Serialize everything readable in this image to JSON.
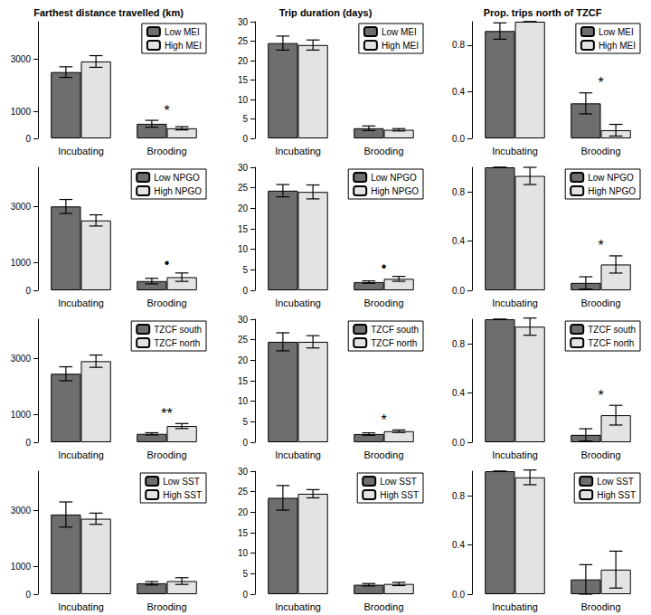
{
  "chart_data": [
    {
      "type": "bar",
      "title": "Farthest distance travelled (km)",
      "categories": [
        "Incubating",
        "Brooding"
      ],
      "series": [
        {
          "name": "Low MEI",
          "color": "#6e6e6e",
          "values": [
            2500,
            550
          ],
          "errors": [
            200,
            130
          ]
        },
        {
          "name": "High MEI",
          "color": "#e3e3e3",
          "values": [
            2900,
            380
          ],
          "errors": [
            220,
            60
          ]
        }
      ],
      "ylim": [
        0,
        4400
      ],
      "yticks": [
        0,
        1000,
        3000
      ],
      "legend": "top right",
      "annotations": [
        {
          "category": "Brooding",
          "text": "*"
        }
      ]
    },
    {
      "type": "bar",
      "title": "Trip duration (days)",
      "categories": [
        "Incubating",
        "Brooding"
      ],
      "series": [
        {
          "name": "Low MEI",
          "color": "#6e6e6e",
          "values": [
            24.5,
            2.6
          ],
          "errors": [
            1.8,
            0.6
          ]
        },
        {
          "name": "High MEI",
          "color": "#e3e3e3",
          "values": [
            24,
            2.2
          ],
          "errors": [
            1.3,
            0.3
          ]
        }
      ],
      "ylim": [
        0,
        30
      ],
      "yticks": [
        0,
        5,
        10,
        15,
        20,
        25,
        30
      ],
      "legend": "top right"
    },
    {
      "type": "bar",
      "title": "Prop. trips north of TZCF",
      "categories": [
        "Incubating",
        "Brooding"
      ],
      "series": [
        {
          "name": "Low MEI",
          "color": "#6e6e6e",
          "values": [
            0.92,
            0.3
          ],
          "errors": [
            0.07,
            0.09
          ]
        },
        {
          "name": "High MEI",
          "color": "#e3e3e3",
          "values": [
            1.0,
            0.07
          ],
          "errors": [
            0,
            0.05
          ]
        }
      ],
      "ylim": [
        0,
        1.0
      ],
      "yticks": [
        {
          "value": 0,
          "label": "0.0"
        },
        {
          "value": 0.4,
          "label": "0.4"
        },
        {
          "value": 0.8,
          "label": "0.8"
        }
      ],
      "legend": "top right",
      "annotations": [
        {
          "category": "Brooding",
          "text": "*"
        }
      ]
    },
    {
      "type": "bar",
      "categories": [
        "Incubating",
        "Brooding"
      ],
      "series": [
        {
          "name": "Low NPGO",
          "color": "#6e6e6e",
          "values": [
            3000,
            330
          ],
          "errors": [
            250,
            100
          ]
        },
        {
          "name": "High NPGO",
          "color": "#e3e3e3",
          "values": [
            2500,
            470
          ],
          "errors": [
            200,
            150
          ]
        }
      ],
      "ylim": [
        0,
        4400
      ],
      "yticks": [
        0,
        1000,
        3000
      ],
      "legend": "top right",
      "annotations": [
        {
          "category": "Brooding",
          "text": "•"
        }
      ]
    },
    {
      "type": "bar",
      "categories": [
        "Incubating",
        "Brooding"
      ],
      "series": [
        {
          "name": "Low NPGO",
          "color": "#6e6e6e",
          "values": [
            24.3,
            2.0
          ],
          "errors": [
            1.5,
            0.3
          ]
        },
        {
          "name": "High NPGO",
          "color": "#e3e3e3",
          "values": [
            24,
            2.8
          ],
          "errors": [
            1.7,
            0.6
          ]
        }
      ],
      "ylim": [
        0,
        30
      ],
      "yticks": [
        0,
        5,
        10,
        15,
        20,
        25,
        30
      ],
      "legend": "top right",
      "annotations": [
        {
          "category": "Brooding",
          "text": "•"
        }
      ]
    },
    {
      "type": "bar",
      "categories": [
        "Incubating",
        "Brooding"
      ],
      "series": [
        {
          "name": "Low NPGO",
          "color": "#6e6e6e",
          "values": [
            1.0,
            0.06
          ],
          "errors": [
            0,
            0.05
          ]
        },
        {
          "name": "High NPGO",
          "color": "#e3e3e3",
          "values": [
            0.93,
            0.21
          ],
          "errors": [
            0.07,
            0.07
          ]
        }
      ],
      "ylim": [
        0,
        1.0
      ],
      "yticks": [
        {
          "value": 0,
          "label": "0.0"
        },
        {
          "value": 0.4,
          "label": "0.4"
        },
        {
          "value": 0.8,
          "label": "0.8"
        }
      ],
      "legend": "top right",
      "annotations": [
        {
          "category": "Brooding",
          "text": "*"
        }
      ]
    },
    {
      "type": "bar",
      "categories": [
        "Incubating",
        "Brooding"
      ],
      "series": [
        {
          "name": "TZCF south",
          "color": "#6e6e6e",
          "values": [
            2450,
            300
          ],
          "errors": [
            250,
            40
          ]
        },
        {
          "name": "TZCF north",
          "color": "#e3e3e3",
          "values": [
            2900,
            580
          ],
          "errors": [
            220,
            90
          ]
        }
      ],
      "ylim": [
        0,
        4400
      ],
      "yticks": [
        0,
        1000,
        3000
      ],
      "legend": "top right",
      "annotations": [
        {
          "category": "Brooding",
          "text": "**"
        }
      ]
    },
    {
      "type": "bar",
      "categories": [
        "Incubating",
        "Brooding"
      ],
      "series": [
        {
          "name": "TZCF south",
          "color": "#6e6e6e",
          "values": [
            24.5,
            2.0
          ],
          "errors": [
            2.2,
            0.3
          ]
        },
        {
          "name": "TZCF north",
          "color": "#e3e3e3",
          "values": [
            24.5,
            2.7
          ],
          "errors": [
            1.5,
            0.3
          ]
        }
      ],
      "ylim": [
        0,
        30
      ],
      "yticks": [
        0,
        5,
        10,
        15,
        20,
        25,
        30
      ],
      "legend": "top right",
      "annotations": [
        {
          "category": "Brooding",
          "text": "*"
        }
      ]
    },
    {
      "type": "bar",
      "categories": [
        "Incubating",
        "Brooding"
      ],
      "series": [
        {
          "name": "TZCF south",
          "color": "#6e6e6e",
          "values": [
            1.0,
            0.06
          ],
          "errors": [
            0,
            0.05
          ]
        },
        {
          "name": "TZCF north",
          "color": "#e3e3e3",
          "values": [
            0.94,
            0.22
          ],
          "errors": [
            0.07,
            0.08
          ]
        }
      ],
      "ylim": [
        0,
        1.0
      ],
      "yticks": [
        {
          "value": 0,
          "label": "0.0"
        },
        {
          "value": 0.4,
          "label": "0.4"
        },
        {
          "value": 0.8,
          "label": "0.8"
        }
      ],
      "legend": "top right",
      "annotations": [
        {
          "category": "Brooding",
          "text": "*"
        }
      ]
    },
    {
      "type": "bar",
      "categories": [
        "Incubating",
        "Brooding"
      ],
      "series": [
        {
          "name": "Low SST",
          "color": "#6e6e6e",
          "values": [
            2850,
            390
          ],
          "errors": [
            450,
            60
          ]
        },
        {
          "name": "High SST",
          "color": "#e3e3e3",
          "values": [
            2700,
            470
          ],
          "errors": [
            200,
            120
          ]
        }
      ],
      "ylim": [
        0,
        4400
      ],
      "yticks": [
        0,
        1000,
        3000
      ],
      "legend": "top right"
    },
    {
      "type": "bar",
      "categories": [
        "Incubating",
        "Brooding"
      ],
      "series": [
        {
          "name": "Low SST",
          "color": "#6e6e6e",
          "values": [
            23.5,
            2.3
          ],
          "errors": [
            3.0,
            0.3
          ]
        },
        {
          "name": "High SST",
          "color": "#e3e3e3",
          "values": [
            24.5,
            2.5
          ],
          "errors": [
            1.0,
            0.4
          ]
        }
      ],
      "ylim": [
        0,
        30
      ],
      "yticks": [
        0,
        5,
        10,
        15,
        20,
        25,
        30
      ],
      "legend": "top right"
    },
    {
      "type": "bar",
      "categories": [
        "Incubating",
        "Brooding"
      ],
      "series": [
        {
          "name": "Low SST",
          "color": "#6e6e6e",
          "values": [
            1.0,
            0.12
          ],
          "errors": [
            0,
            0.12
          ]
        },
        {
          "name": "High SST",
          "color": "#e3e3e3",
          "values": [
            0.95,
            0.2
          ],
          "errors": [
            0.06,
            0.15
          ]
        }
      ],
      "ylim": [
        0,
        1.0
      ],
      "yticks": [
        {
          "value": 0,
          "label": "0.0"
        },
        {
          "value": 0.4,
          "label": "0.4"
        },
        {
          "value": 0.8,
          "label": "0.8"
        }
      ],
      "legend": "top right"
    }
  ]
}
